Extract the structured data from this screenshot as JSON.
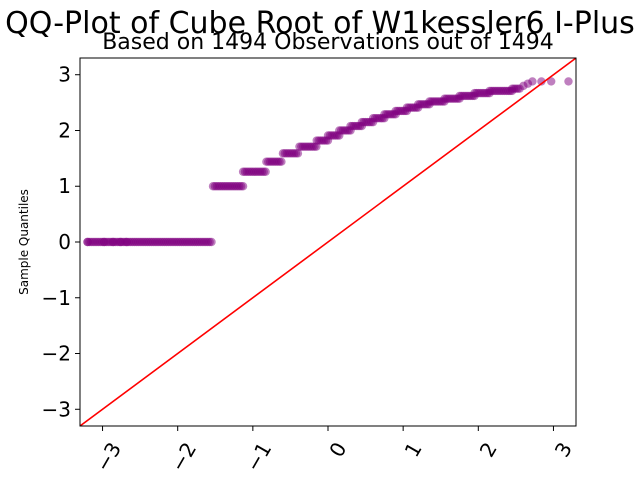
{
  "chart_data": {
    "type": "scatter",
    "title": "QQ-Plot of Cube Root of W1kessler6 I-Plus",
    "subtitle": "Based on 1494 Observations out of 1494",
    "xlabel": "",
    "ylabel": "Sample Quantiles",
    "xlim": [
      -3.3,
      3.3
    ],
    "ylim": [
      -3.3,
      3.3
    ],
    "x_ticks": [
      -3,
      -2,
      -1,
      0,
      1,
      2,
      3
    ],
    "x_tick_labels": [
      "−3",
      "−2",
      "−1",
      "0",
      "1",
      "2",
      "3"
    ],
    "y_ticks": [
      -3,
      -2,
      -1,
      0,
      1,
      2,
      3
    ],
    "y_tick_labels": [
      "−3",
      "−2",
      "−1",
      "0",
      "1",
      "2",
      "3"
    ],
    "grid": false,
    "point_color": "#800080",
    "line_color": "#ff0000",
    "reference_line": {
      "x": [
        -3.3,
        3.3
      ],
      "y": [
        -3.3,
        3.3
      ]
    },
    "segments": [
      {
        "x_start": -3.2,
        "x_end": -1.53,
        "y": 0.0
      },
      {
        "x_start": -1.53,
        "x_end": -1.13,
        "y": 1.0
      },
      {
        "x_start": -1.13,
        "x_end": -0.82,
        "y": 1.26
      },
      {
        "x_start": -0.82,
        "x_end": -0.6,
        "y": 1.44
      },
      {
        "x_start": -0.6,
        "x_end": -0.38,
        "y": 1.59
      },
      {
        "x_start": -0.38,
        "x_end": -0.15,
        "y": 1.71
      },
      {
        "x_start": -0.15,
        "x_end": 0.0,
        "y": 1.82
      },
      {
        "x_start": 0.0,
        "x_end": 0.15,
        "y": 1.91
      },
      {
        "x_start": 0.15,
        "x_end": 0.3,
        "y": 2.0
      },
      {
        "x_start": 0.3,
        "x_end": 0.45,
        "y": 2.08
      },
      {
        "x_start": 0.45,
        "x_end": 0.6,
        "y": 2.15
      },
      {
        "x_start": 0.6,
        "x_end": 0.75,
        "y": 2.22
      },
      {
        "x_start": 0.75,
        "x_end": 0.9,
        "y": 2.29
      },
      {
        "x_start": 0.9,
        "x_end": 1.05,
        "y": 2.35
      },
      {
        "x_start": 1.05,
        "x_end": 1.2,
        "y": 2.41
      },
      {
        "x_start": 1.2,
        "x_end": 1.35,
        "y": 2.47
      },
      {
        "x_start": 1.35,
        "x_end": 1.55,
        "y": 2.52
      },
      {
        "x_start": 1.55,
        "x_end": 1.75,
        "y": 2.57
      },
      {
        "x_start": 1.75,
        "x_end": 1.95,
        "y": 2.62
      },
      {
        "x_start": 1.95,
        "x_end": 2.15,
        "y": 2.67
      },
      {
        "x_start": 2.15,
        "x_end": 2.45,
        "y": 2.71
      },
      {
        "x_start": 2.45,
        "x_end": 2.55,
        "y": 2.75
      }
    ],
    "isolated_points": [
      {
        "x": -3.2,
        "y": 0.0
      },
      {
        "x": -2.98,
        "y": 0.0
      },
      {
        "x": -2.86,
        "y": 0.0
      },
      {
        "x": -2.76,
        "y": 0.0
      },
      {
        "x": -2.68,
        "y": 0.0
      },
      {
        "x": 2.6,
        "y": 2.8
      },
      {
        "x": 2.66,
        "y": 2.84
      },
      {
        "x": 2.72,
        "y": 2.88
      },
      {
        "x": 2.84,
        "y": 2.88
      },
      {
        "x": 2.97,
        "y": 2.88
      },
      {
        "x": 3.2,
        "y": 2.88
      }
    ]
  }
}
